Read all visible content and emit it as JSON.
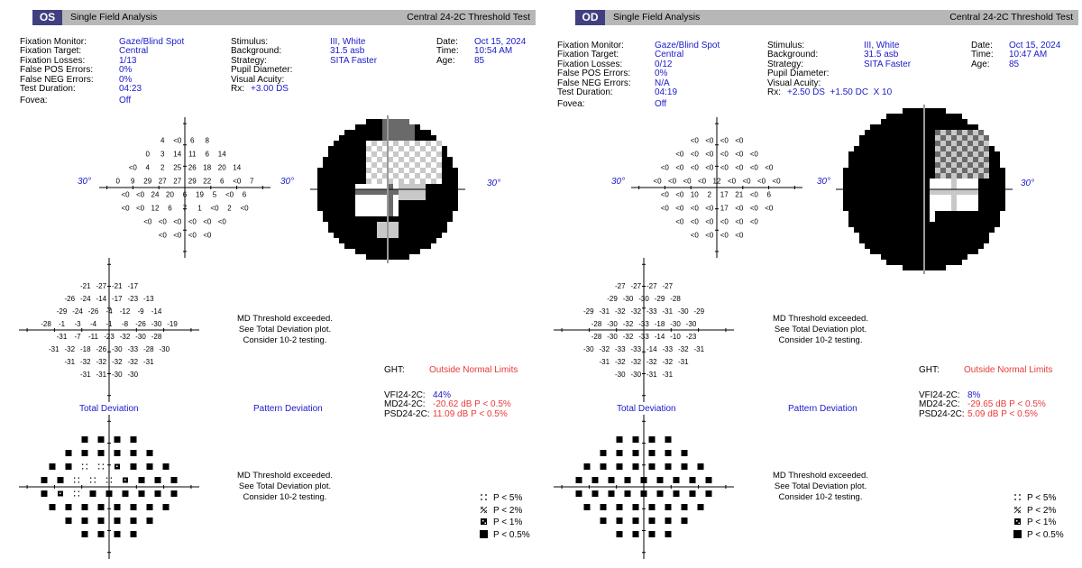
{
  "reports": [
    {
      "id": "os",
      "eye": "OS",
      "header": {
        "title": "Single Field Analysis",
        "test": "Central 24-2C Threshold Test"
      },
      "info": {
        "fixation_monitor": {
          "label": "Fixation Monitor:",
          "value": "Gaze/Blind Spot"
        },
        "fixation_target": {
          "label": "Fixation Target:",
          "value": "Central"
        },
        "fixation_losses": {
          "label": "Fixation Losses:",
          "value": "1/13"
        },
        "false_pos": {
          "label": "False POS Errors:",
          "value": "0%"
        },
        "false_neg": {
          "label": "False NEG Errors:",
          "value": "0%"
        },
        "test_duration": {
          "label": "Test Duration:",
          "value": "04:23"
        },
        "fovea": {
          "label": "Fovea:",
          "value": "Off"
        },
        "stimulus": {
          "label": "Stimulus:",
          "value": "III, White"
        },
        "background": {
          "label": "Background:",
          "value": "31.5 asb"
        },
        "strategy": {
          "label": "Strategy:",
          "value": "SITA Faster"
        },
        "pupil": {
          "label": "Pupil Diameter:",
          "value": ""
        },
        "acuity": {
          "label": "Visual Acuity:",
          "value": ""
        },
        "rx": {
          "label": "Rx:",
          "value": "+3.00 DS"
        },
        "date": {
          "label": "Date:",
          "value": "Oct 15, 2024"
        },
        "time": {
          "label": "Time:",
          "value": "10:54 AM"
        },
        "age": {
          "label": "Age:",
          "value": "85"
        }
      },
      "axis_label": "30°",
      "threshold_rows": [
        [
          "4",
          "<0",
          "6",
          "8"
        ],
        [
          "0",
          "3",
          "14",
          "11",
          "6",
          "14"
        ],
        [
          "<0",
          "4",
          "2",
          "25",
          "26",
          "18",
          "20",
          "14"
        ],
        [
          "0",
          "9",
          "29",
          "27",
          "27",
          "29",
          "22",
          "6",
          "<0",
          "7"
        ],
        [
          "<0",
          "<0",
          "24",
          "20",
          "6",
          "19",
          "5",
          "<0",
          "6"
        ],
        [
          "<0",
          "<0",
          "12",
          "6",
          "7",
          "1",
          "<0",
          "2",
          "<0"
        ],
        [
          "<0",
          "<0",
          "<0",
          "<0",
          "<0",
          "<0"
        ],
        [
          "<0",
          "<0",
          "<0",
          "<0"
        ]
      ],
      "total_deviation_rows": [
        [
          "-21",
          "-27",
          "-21",
          "-17"
        ],
        [
          "-26",
          "-24",
          "-14",
          "-17",
          "-23",
          "-13"
        ],
        [
          "-29",
          "-24",
          "-26",
          "-4",
          "-12",
          "-9",
          "-14"
        ],
        [
          "-28",
          "-1",
          "-3",
          "-4",
          "-1",
          "-8",
          "-26",
          "-30",
          "-19"
        ],
        [
          "-31",
          "-7",
          "-11",
          "-23",
          "-32",
          "-30",
          "-28"
        ],
        [
          "-31",
          "-32",
          "-18",
          "-26",
          "-30",
          "-33",
          "-28",
          "-30"
        ],
        [
          "-31",
          "-32",
          "-32",
          "-32",
          "-32",
          "-31"
        ],
        [
          "-31",
          "-31",
          "-30",
          "-30"
        ]
      ],
      "total_deviation_title": "Total Deviation",
      "pattern_deviation_title": "Pattern Deviation",
      "md_message": [
        "MD Threshold exceeded.",
        "See Total Deviation plot.",
        "Consider 10-2 testing."
      ],
      "ght": {
        "label": "GHT:",
        "value": "Outside Normal Limits"
      },
      "vfi": {
        "label": "VFI24-2C:",
        "value": "44%"
      },
      "md": {
        "label": "MD24-2C:",
        "value": "-20.62 dB P < 0.5%"
      },
      "psd": {
        "label": "PSD24-2C:",
        "value": "11.09 dB P < 0.5%"
      },
      "legend": [
        "P < 5%",
        "P < 2%",
        "P < 1%",
        "P < 0.5%"
      ]
    },
    {
      "id": "od",
      "eye": "OD",
      "header": {
        "title": "Single Field Analysis",
        "test": "Central 24-2C Threshold Test"
      },
      "info": {
        "fixation_monitor": {
          "label": "Fixation Monitor:",
          "value": "Gaze/Blind Spot"
        },
        "fixation_target": {
          "label": "Fixation Target:",
          "value": "Central"
        },
        "fixation_losses": {
          "label": "Fixation Losses:",
          "value": "0/12"
        },
        "false_pos": {
          "label": "False POS Errors:",
          "value": "0%"
        },
        "false_neg": {
          "label": "False NEG Errors:",
          "value": "N/A"
        },
        "test_duration": {
          "label": "Test Duration:",
          "value": "04:19"
        },
        "fovea": {
          "label": "Fovea:",
          "value": "Off"
        },
        "stimulus": {
          "label": "Stimulus:",
          "value": "III, White"
        },
        "background": {
          "label": "Background:",
          "value": "31.5 asb"
        },
        "strategy": {
          "label": "Strategy:",
          "value": "SITA Faster"
        },
        "pupil": {
          "label": "Pupil Diameter:",
          "value": ""
        },
        "acuity": {
          "label": "Visual Acuity:",
          "value": ""
        },
        "rx": {
          "label": "Rx:",
          "value": "+2.50 DS  +1.50 DC  X 10"
        },
        "date": {
          "label": "Date:",
          "value": "Oct 15, 2024"
        },
        "time": {
          "label": "Time:",
          "value": "10:47 AM"
        },
        "age": {
          "label": "Age:",
          "value": "85"
        }
      },
      "axis_label": "30°",
      "threshold_rows": [
        [
          "<0",
          "<0",
          "<0",
          "<0"
        ],
        [
          "<0",
          "<0",
          "<0",
          "<0",
          "<0",
          "<0"
        ],
        [
          "<0",
          "<0",
          "<0",
          "<0",
          "<0",
          "<0",
          "<0",
          "<0"
        ],
        [
          "<0",
          "<0",
          "<0",
          "<0",
          "12",
          "<0",
          "<0",
          "<0",
          "<0"
        ],
        [
          "<0",
          "<0",
          "10",
          "2",
          "17",
          "21",
          "<0",
          "6"
        ],
        [
          "<0",
          "<0",
          "<0",
          "<0",
          "17",
          "<0",
          "<0",
          "<0"
        ],
        [
          "<0",
          "<0",
          "<0",
          "<0",
          "<0",
          "<0"
        ],
        [
          "<0",
          "<0",
          "<0",
          "<0"
        ]
      ],
      "total_deviation_rows": [
        [
          "-27",
          "-27",
          "-27",
          "-27"
        ],
        [
          "-29",
          "-30",
          "-30",
          "-29",
          "-28"
        ],
        [
          "-29",
          "-31",
          "-32",
          "-32",
          "-33",
          "-31",
          "-30",
          "-29"
        ],
        [
          "-28",
          "-30",
          "-32",
          "-33",
          "-18",
          "-30",
          "-30"
        ],
        [
          "-28",
          "-30",
          "-32",
          "-33",
          "-14",
          "-10",
          "-23"
        ],
        [
          "-30",
          "-32",
          "-33",
          "-33",
          "-14",
          "-33",
          "-32",
          "-31"
        ],
        [
          "-31",
          "-32",
          "-32",
          "-32",
          "-32",
          "-31"
        ],
        [
          "-30",
          "-30",
          "-31",
          "-31"
        ]
      ],
      "total_deviation_title": "Total Deviation",
      "pattern_deviation_title": "Pattern Deviation",
      "md_message": [
        "MD Threshold exceeded.",
        "See Total Deviation plot.",
        "Consider 10-2 testing."
      ],
      "ght": {
        "label": "GHT:",
        "value": "Outside Normal Limits"
      },
      "vfi": {
        "label": "VFI24-2C:",
        "value": "8%"
      },
      "md": {
        "label": "MD24-2C:",
        "value": "-29.65 dB P < 0.5%"
      },
      "psd": {
        "label": "PSD24-2C:",
        "value": "5.09 dB P < 0.5%"
      },
      "legend": [
        "P < 5%",
        "P < 2%",
        "P < 1%",
        "P < 0.5%"
      ]
    }
  ]
}
